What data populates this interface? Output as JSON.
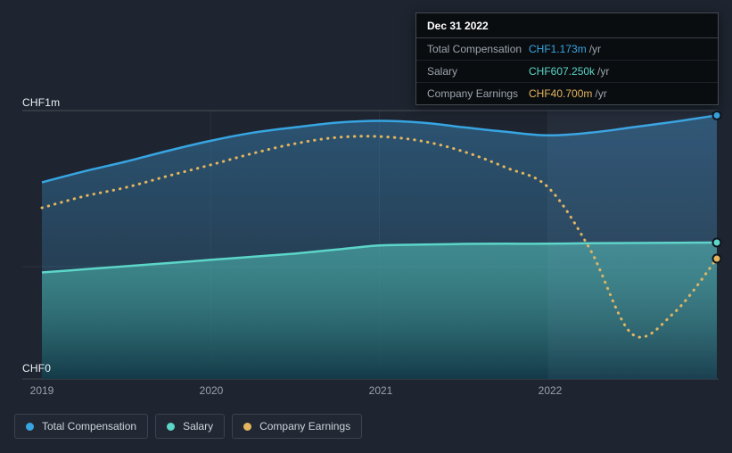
{
  "page": {
    "background": "#1e2530"
  },
  "tooltip": {
    "date": "Dec 31 2022",
    "rows": [
      {
        "label": "Total Compensation",
        "value": "CHF1.173m",
        "unit": "/yr",
        "color": "#37a5e2"
      },
      {
        "label": "Salary",
        "value": "CHF607.250k",
        "unit": "/yr",
        "color": "#5cd6c8"
      },
      {
        "label": "Company Earnings",
        "value": "CHF40.700m",
        "unit": "/yr",
        "color": "#e3b55e"
      }
    ]
  },
  "axes": {
    "y_top_label": "CHF1m",
    "y_bottom_label": "CHF0",
    "x_labels": [
      "2019",
      "2020",
      "2021",
      "2022"
    ]
  },
  "legend": [
    {
      "label": "Total Compensation",
      "color": "#37a5e2"
    },
    {
      "label": "Salary",
      "color": "#5cd6c8"
    },
    {
      "label": "Company Earnings",
      "color": "#e3b55e"
    }
  ],
  "chart_data": {
    "type": "area",
    "title": "",
    "x": [
      2019,
      2019.25,
      2019.5,
      2019.75,
      2020,
      2020.25,
      2020.5,
      2020.75,
      2021,
      2021.25,
      2021.5,
      2021.75,
      2022,
      2022.25,
      2022.5,
      2022.75,
      2023
    ],
    "x_tick_labels": [
      "2019",
      "2020",
      "2021",
      "2022"
    ],
    "x_tick_values": [
      2019,
      2020,
      2021,
      2022
    ],
    "y_axis": {
      "top_label": "CHF1m",
      "bottom_label": "CHF0",
      "ylim_chf": [
        0,
        1250000
      ]
    },
    "grid": "faint-horizontal",
    "legend_position": "bottom-left",
    "highlight_band": {
      "from_x": 2022,
      "to_x": 2023
    },
    "series": [
      {
        "name": "Total Compensation",
        "color": "#37a5e2",
        "style": "solid-line-with-area",
        "unit": "CHF/yr",
        "ymax": 1250000,
        "area": true,
        "values": [
          875000,
          924000,
          968000,
          1016000,
          1060000,
          1096000,
          1120000,
          1141000,
          1149000,
          1141000,
          1120000,
          1100000,
          1084000,
          1096000,
          1120000,
          1145000,
          1173000
        ],
        "end_value_label": "CHF1.173m /yr"
      },
      {
        "name": "Salary",
        "color": "#5cd6c8",
        "style": "solid-line-with-area",
        "unit": "CHF/yr",
        "ymax": 1250000,
        "area": true,
        "values": [
          474000,
          488000,
          502000,
          516000,
          530000,
          544000,
          558000,
          576000,
          594000,
          598000,
          601000,
          602000,
          602000,
          604000,
          605000,
          606000,
          607250
        ],
        "end_value_label": "CHF607.250k /yr"
      },
      {
        "name": "Company Earnings",
        "color": "#e3b55e",
        "style": "dotted-line",
        "unit": "CHF millions/yr",
        "ymax": 95,
        "area": false,
        "values": [
          57.9,
          61.8,
          64.8,
          68.7,
          72.4,
          76.3,
          79.6,
          81.7,
          82.0,
          80.5,
          76.9,
          71.5,
          64.8,
          43.7,
          15.1,
          22.6,
          40.7
        ],
        "end_value_label": "CHF40.700m /yr"
      }
    ]
  }
}
